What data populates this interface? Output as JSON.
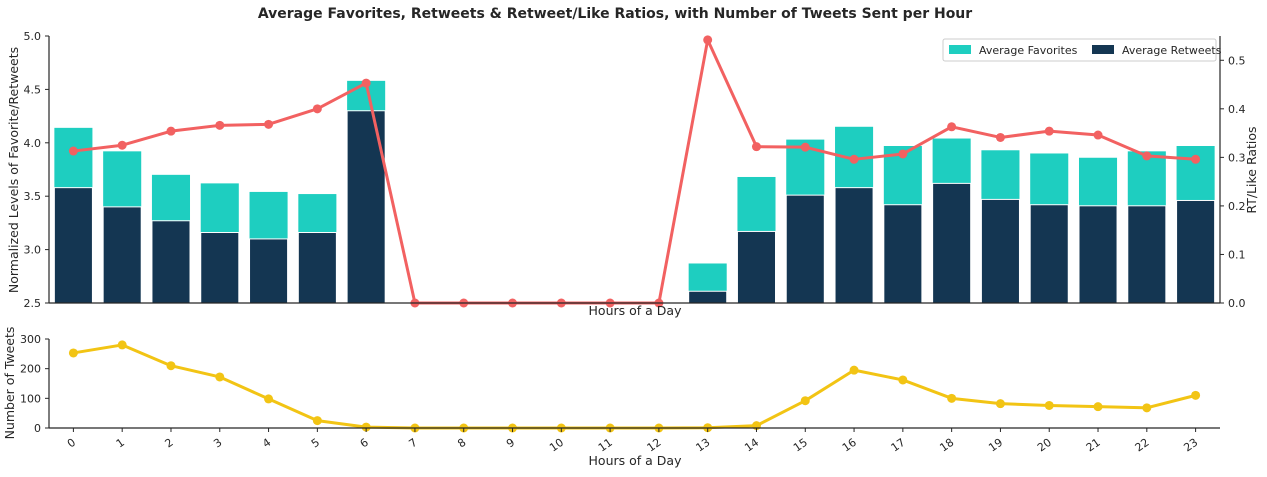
{
  "title": "Average Favorites, Retweets & Retweet/Like Ratios, with Number of Tweets Sent per Hour",
  "colors": {
    "favorites": "#1ecec0",
    "retweets": "#143652",
    "ratio": "#f26161",
    "tweets": "#f2c414",
    "axis": "#262626"
  },
  "chart_data": [
    {
      "type": "bar",
      "title": "Average Favorites, Retweets & Retweet/Like Ratios, with Number of Tweets Sent per Hour",
      "xlabel": "Hours of a Day",
      "ylabel": "Normalized Levels of Favorite/Retweets",
      "y2label": "RT/Like Ratios",
      "ylim": [
        2.5,
        5.0
      ],
      "y2lim": [
        0.0,
        0.55
      ],
      "yticks": [
        "2.5",
        "3.0",
        "3.5",
        "4.0",
        "4.5",
        "5.0"
      ],
      "y2ticks": [
        "0.0",
        "0.1",
        "0.2",
        "0.3",
        "0.4",
        "0.5"
      ],
      "legend_position": "top-right",
      "categories": [
        "0",
        "1",
        "2",
        "3",
        "4",
        "5",
        "6",
        "7",
        "8",
        "9",
        "10",
        "11",
        "12",
        "13",
        "14",
        "15",
        "16",
        "17",
        "18",
        "19",
        "20",
        "21",
        "22",
        "23"
      ],
      "series": [
        {
          "name": "Average Favorites",
          "values": [
            4.14,
            3.92,
            3.7,
            3.62,
            3.54,
            3.52,
            4.58,
            null,
            null,
            null,
            null,
            null,
            null,
            2.87,
            3.68,
            4.03,
            4.15,
            3.97,
            4.04,
            3.93,
            3.9,
            3.86,
            3.92,
            3.97
          ]
        },
        {
          "name": "Average Retweets",
          "values": [
            3.58,
            3.4,
            3.27,
            3.16,
            3.1,
            3.16,
            4.3,
            null,
            null,
            null,
            null,
            null,
            null,
            2.61,
            3.17,
            3.51,
            3.58,
            3.42,
            3.62,
            3.47,
            3.42,
            3.41,
            3.41,
            3.46
          ]
        },
        {
          "name": "RT/Like Ratios",
          "axis": "right",
          "type": "line",
          "values": [
            0.313,
            0.325,
            0.354,
            0.366,
            0.368,
            0.4,
            0.453,
            0.0,
            0.0,
            0.0,
            0.0,
            0.0,
            0.0,
            0.542,
            0.322,
            0.321,
            0.296,
            0.307,
            0.363,
            0.341,
            0.354,
            0.346,
            0.303,
            0.296
          ]
        }
      ]
    },
    {
      "type": "line",
      "xlabel": "Hours of a Day",
      "ylabel": "Number of Tweets",
      "ylim": [
        0,
        300
      ],
      "yticks": [
        "0",
        "100",
        "200",
        "300"
      ],
      "categories": [
        "0",
        "1",
        "2",
        "3",
        "4",
        "5",
        "6",
        "7",
        "8",
        "9",
        "10",
        "11",
        "12",
        "13",
        "14",
        "15",
        "16",
        "17",
        "18",
        "19",
        "20",
        "21",
        "22",
        "23"
      ],
      "values": [
        253,
        280,
        210,
        172,
        98,
        25,
        3,
        0,
        0,
        0,
        0,
        0,
        0,
        1,
        8,
        92,
        195,
        162,
        100,
        82,
        76,
        72,
        68,
        110
      ]
    }
  ]
}
